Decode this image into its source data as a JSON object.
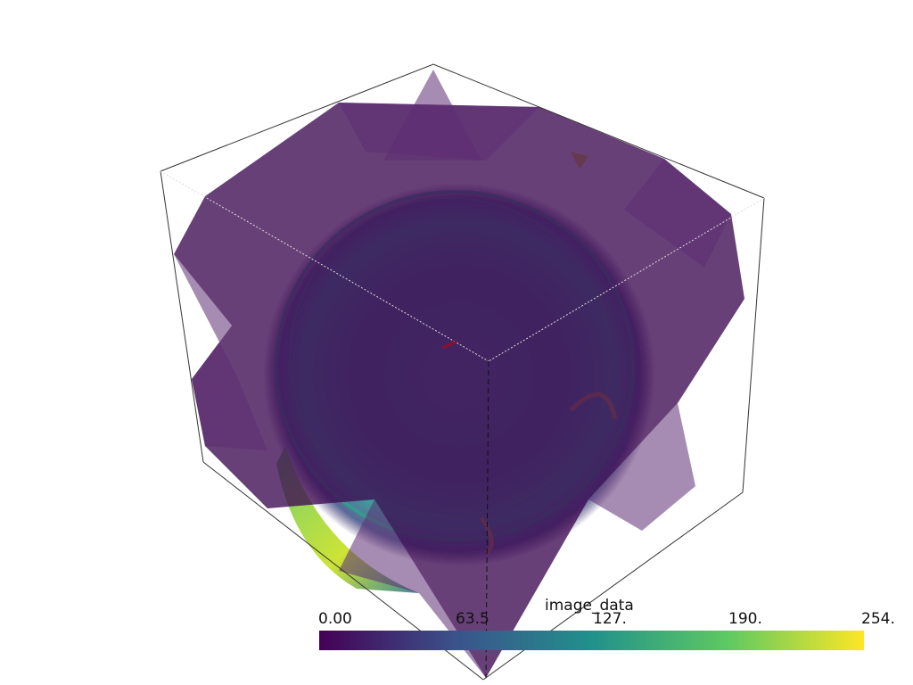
{
  "colorbar": {
    "title": "image_data",
    "ticks": [
      "0.00",
      "63.5",
      "127.",
      "190.",
      "254."
    ],
    "range": [
      0,
      254
    ],
    "colormap": "viridis",
    "colors": [
      "#440154",
      "#3b528b",
      "#21918c",
      "#5ec962",
      "#fde725"
    ]
  },
  "scene": {
    "description_free": true,
    "slice_tint": "#3d0a52",
    "box_line_color": "#333333"
  }
}
